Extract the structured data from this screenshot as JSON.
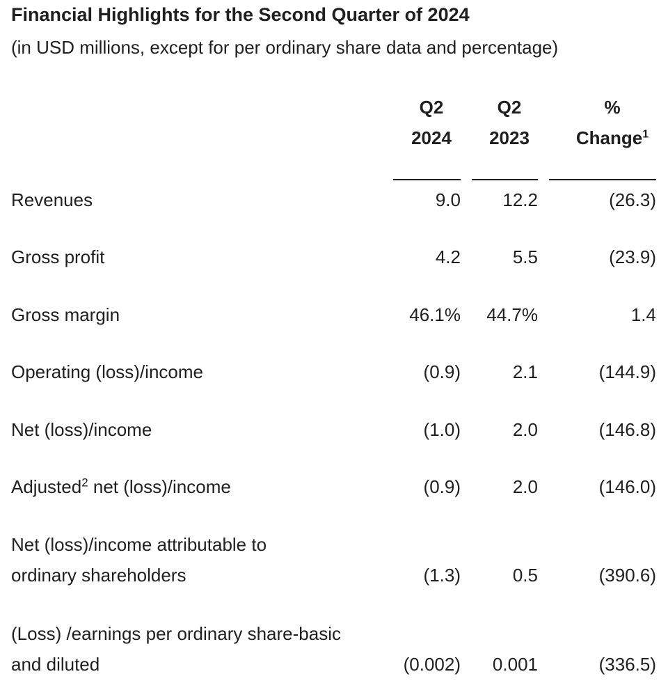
{
  "title": "Financial Highlights for the Second Quarter of 2024",
  "subtitle": "(in USD millions, except for per ordinary share data and percentage)",
  "columns": [
    {
      "line1": "Q2",
      "line2": "2024",
      "sup": ""
    },
    {
      "line1": "Q2",
      "line2": "2023",
      "sup": ""
    },
    {
      "line1": "%",
      "line2": "Change",
      "sup": "1"
    }
  ],
  "rows": [
    {
      "label": "Revenues",
      "q2_2024": "9.0",
      "q2_2023": "12.2",
      "change": "(26.3)"
    },
    {
      "label": "Gross profit",
      "q2_2024": "4.2",
      "q2_2023": "5.5",
      "change": "(23.9)"
    },
    {
      "label": "Gross margin",
      "q2_2024": "46.1%",
      "q2_2023": "44.7%",
      "change": "1.4"
    },
    {
      "label": "Operating (loss)/income",
      "q2_2024": "(0.9)",
      "q2_2023": "2.1",
      "change": "(144.9)"
    },
    {
      "label": "Net (loss)/income",
      "q2_2024": "(1.0)",
      "q2_2023": "2.0",
      "change": "(146.8)"
    },
    {
      "label_pre": "Adjusted",
      "label_sup": "2",
      "label_post": " net (loss)/income",
      "q2_2024": "(0.9)",
      "q2_2023": "2.0",
      "change": "(146.0)"
    },
    {
      "label_line1": "Net (loss)/income attributable to",
      "label_line2": "ordinary shareholders",
      "q2_2024": "(1.3)",
      "q2_2023": "0.5",
      "change": "(390.6)"
    },
    {
      "label_line1": "(Loss) /earnings per ordinary share-basic",
      "label_line2": "and diluted",
      "q2_2024": "(0.002)",
      "q2_2023": "0.001",
      "change": "(336.5)"
    }
  ]
}
